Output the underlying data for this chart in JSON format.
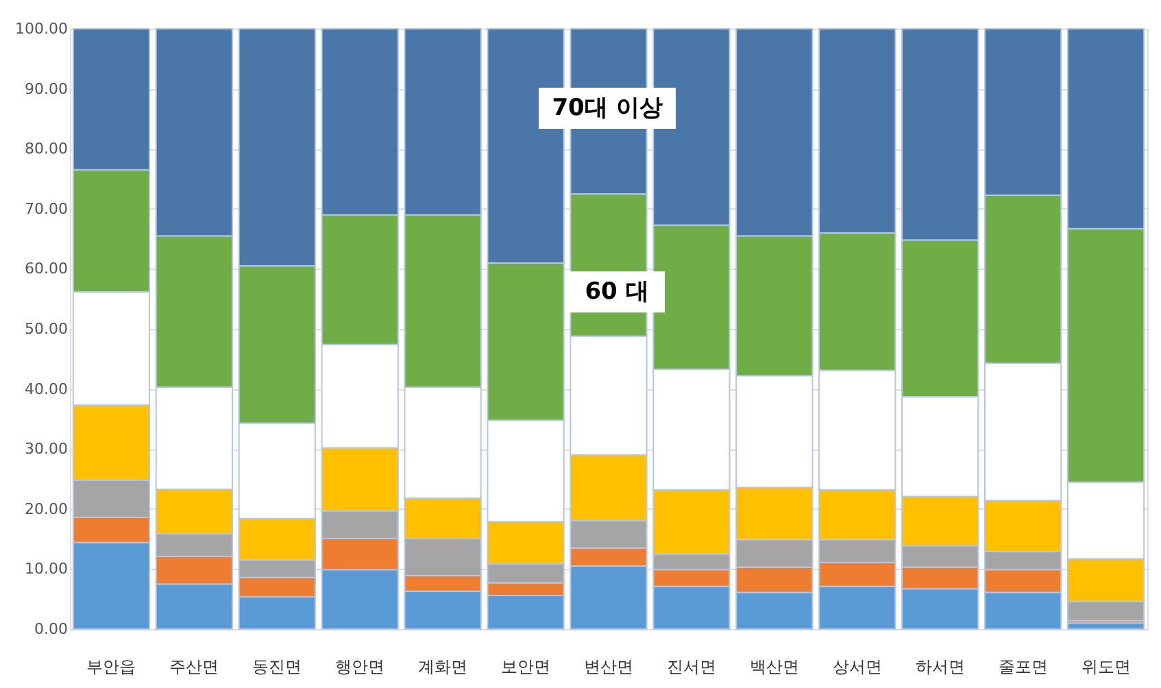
{
  "chart_data": {
    "type": "bar",
    "stacked": true,
    "categories": [
      "부안읍",
      "주산면",
      "동진면",
      "행안면",
      "계화면",
      "보안면",
      "변산면",
      "진서면",
      "백산면",
      "상서면",
      "하서면",
      "줄포면",
      "위도면"
    ],
    "series": [
      {
        "color": "#5b9bd5",
        "values": [
          14.4,
          7.5,
          5.4,
          9.9,
          6.3,
          5.6,
          10.5,
          7.1,
          6.1,
          7.1,
          6.7,
          6.1,
          1.0
        ]
      },
      {
        "color": "#ed7d31",
        "values": [
          4.2,
          4.6,
          3.2,
          5.2,
          2.6,
          2.1,
          3.0,
          2.8,
          4.2,
          4.0,
          3.6,
          3.8,
          0.4
        ]
      },
      {
        "color": "#a5a5a5",
        "values": [
          6.2,
          3.8,
          2.9,
          4.6,
          6.2,
          3.2,
          4.6,
          2.6,
          4.6,
          3.8,
          3.6,
          3.0,
          3.2
        ]
      },
      {
        "color": "#ffc000",
        "values": [
          12.5,
          7.4,
          6.9,
          10.5,
          6.7,
          7.0,
          10.9,
          10.7,
          8.7,
          8.3,
          8.2,
          8.5,
          7.1
        ]
      },
      {
        "color": "#ffffff",
        "values": [
          18.9,
          17.0,
          15.9,
          17.2,
          18.5,
          16.9,
          19.8,
          20.1,
          18.6,
          19.9,
          16.6,
          22.9,
          12.8
        ]
      },
      {
        "color": "#70ad47",
        "values": [
          20.3,
          25.2,
          26.2,
          21.6,
          28.7,
          26.2,
          23.7,
          24.0,
          23.3,
          22.9,
          26.1,
          28.0,
          42.2
        ]
      },
      {
        "color": "#4a76a8",
        "values": [
          23.5,
          34.5,
          39.5,
          31.0,
          31.0,
          39.0,
          27.5,
          32.7,
          34.5,
          34.0,
          35.2,
          27.7,
          33.3
        ]
      }
    ],
    "ylim": [
      0,
      100
    ],
    "yticks": [
      {
        "value": 0,
        "label": "0.00"
      },
      {
        "value": 10,
        "label": "10.00"
      },
      {
        "value": 20,
        "label": "20.00"
      },
      {
        "value": 30,
        "label": "30.00"
      },
      {
        "value": 40,
        "label": "40.00"
      },
      {
        "value": 50,
        "label": "50.00"
      },
      {
        "value": 60,
        "label": "60.00"
      },
      {
        "value": 70,
        "label": "70.00"
      },
      {
        "value": 80,
        "label": "80.00"
      },
      {
        "value": 90,
        "label": "90.00"
      },
      {
        "value": 100,
        "label": "100.00"
      }
    ],
    "grid": "y",
    "annotations": [
      "70대 이상",
      "60 대"
    ]
  }
}
